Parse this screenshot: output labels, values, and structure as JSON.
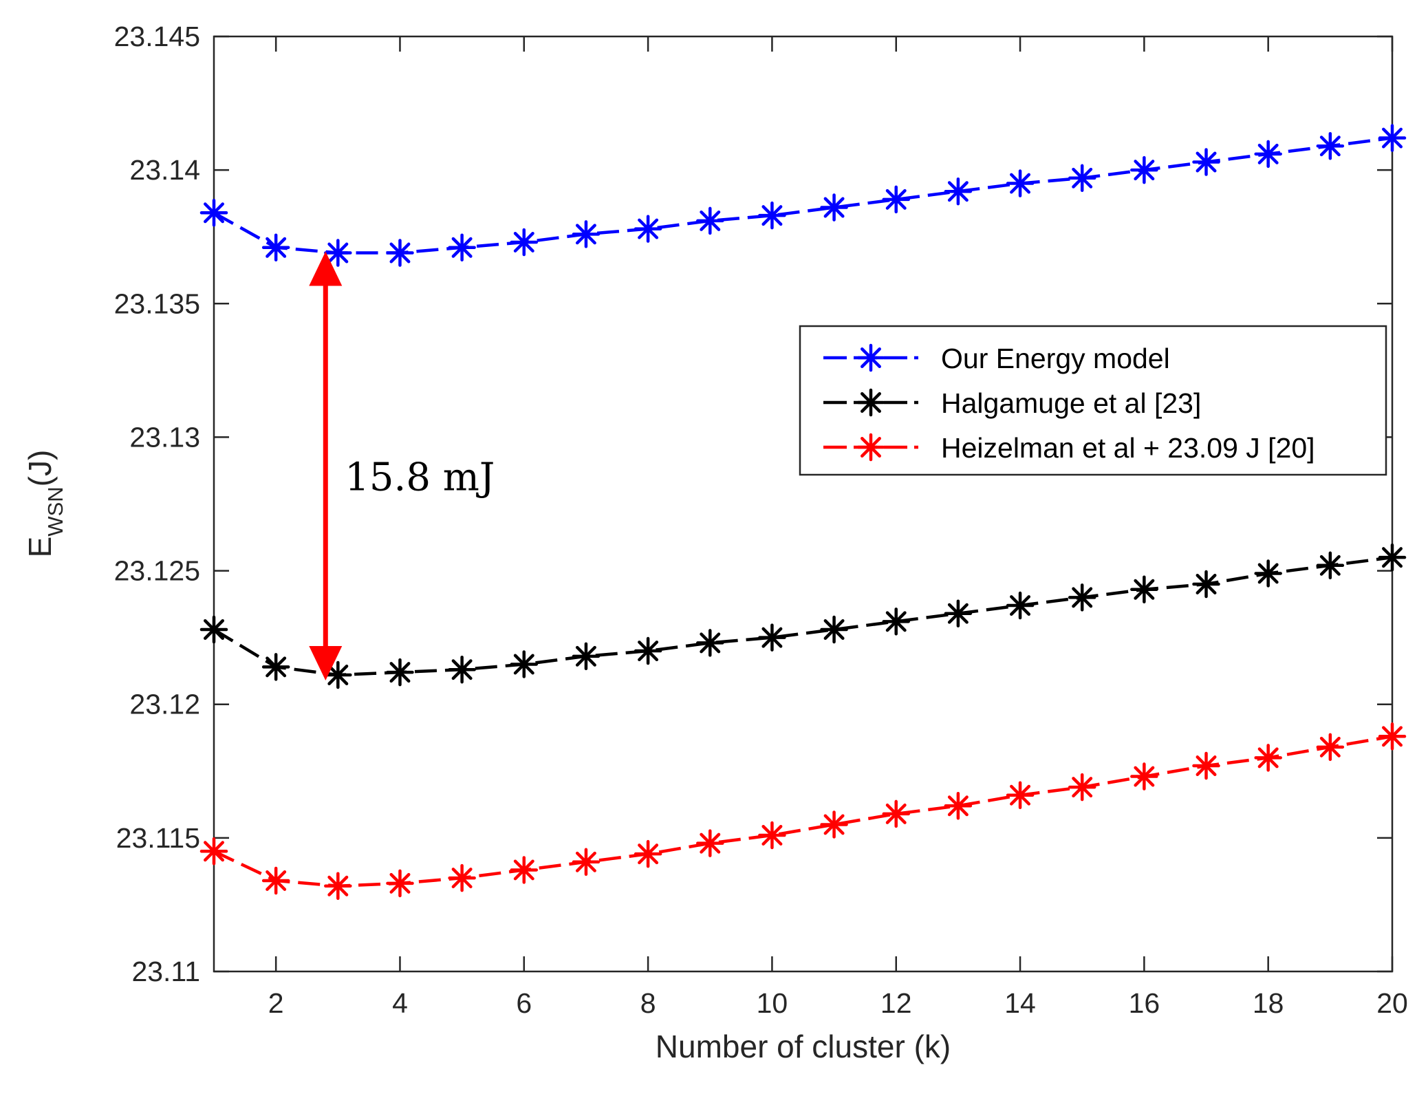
{
  "chart_data": {
    "type": "line",
    "xlabel": "Number of cluster (k)",
    "ylabel": {
      "main": "E",
      "sub": "WSN",
      "unit": "(J)"
    },
    "xlim": [
      1,
      20
    ],
    "ylim": [
      23.11,
      23.145
    ],
    "xticks": [
      2,
      4,
      6,
      8,
      10,
      12,
      14,
      16,
      18,
      20
    ],
    "yticks": [
      23.11,
      23.115,
      23.12,
      23.125,
      23.13,
      23.135,
      23.14,
      23.145
    ],
    "ytick_labels": [
      "23.11",
      "23.115",
      "23.12",
      "23.125",
      "23.13",
      "23.135",
      "23.14",
      "23.145"
    ],
    "grid": false,
    "legend_position": "right",
    "x": [
      1,
      2,
      3,
      4,
      5,
      6,
      7,
      8,
      9,
      10,
      11,
      12,
      13,
      14,
      15,
      16,
      17,
      18,
      19,
      20
    ],
    "series": [
      {
        "name": "Our Energy model",
        "color": "#0000ff",
        "marker": "asterisk",
        "line": "dashed",
        "values": [
          23.1384,
          23.1371,
          23.1369,
          23.1369,
          23.1371,
          23.1373,
          23.1376,
          23.1378,
          23.1381,
          23.1383,
          23.1386,
          23.1389,
          23.1392,
          23.1395,
          23.1397,
          23.14,
          23.1403,
          23.1406,
          23.1409,
          23.1412
        ]
      },
      {
        "name": "Halgamuge et al [23]",
        "color": "#000000",
        "marker": "asterisk",
        "line": "dashed",
        "values": [
          23.1228,
          23.1214,
          23.1211,
          23.1212,
          23.1213,
          23.1215,
          23.1218,
          23.122,
          23.1223,
          23.1225,
          23.1228,
          23.1231,
          23.1234,
          23.1237,
          23.124,
          23.1243,
          23.1245,
          23.1249,
          23.1252,
          23.1255
        ]
      },
      {
        "name": "Heizelman et al + 23.09 J [20]",
        "color": "#ff0000",
        "marker": "asterisk",
        "line": "dashed",
        "values": [
          23.1145,
          23.1134,
          23.1132,
          23.1133,
          23.1135,
          23.1138,
          23.1141,
          23.1144,
          23.1148,
          23.1151,
          23.1155,
          23.1159,
          23.1162,
          23.1166,
          23.1169,
          23.1173,
          23.1177,
          23.118,
          23.1184,
          23.1188
        ]
      }
    ],
    "annotation": {
      "text": "15.8 mJ",
      "color": "#ff0000",
      "x": 2.8,
      "y_from": 23.1369,
      "y_to": 23.1211
    }
  }
}
